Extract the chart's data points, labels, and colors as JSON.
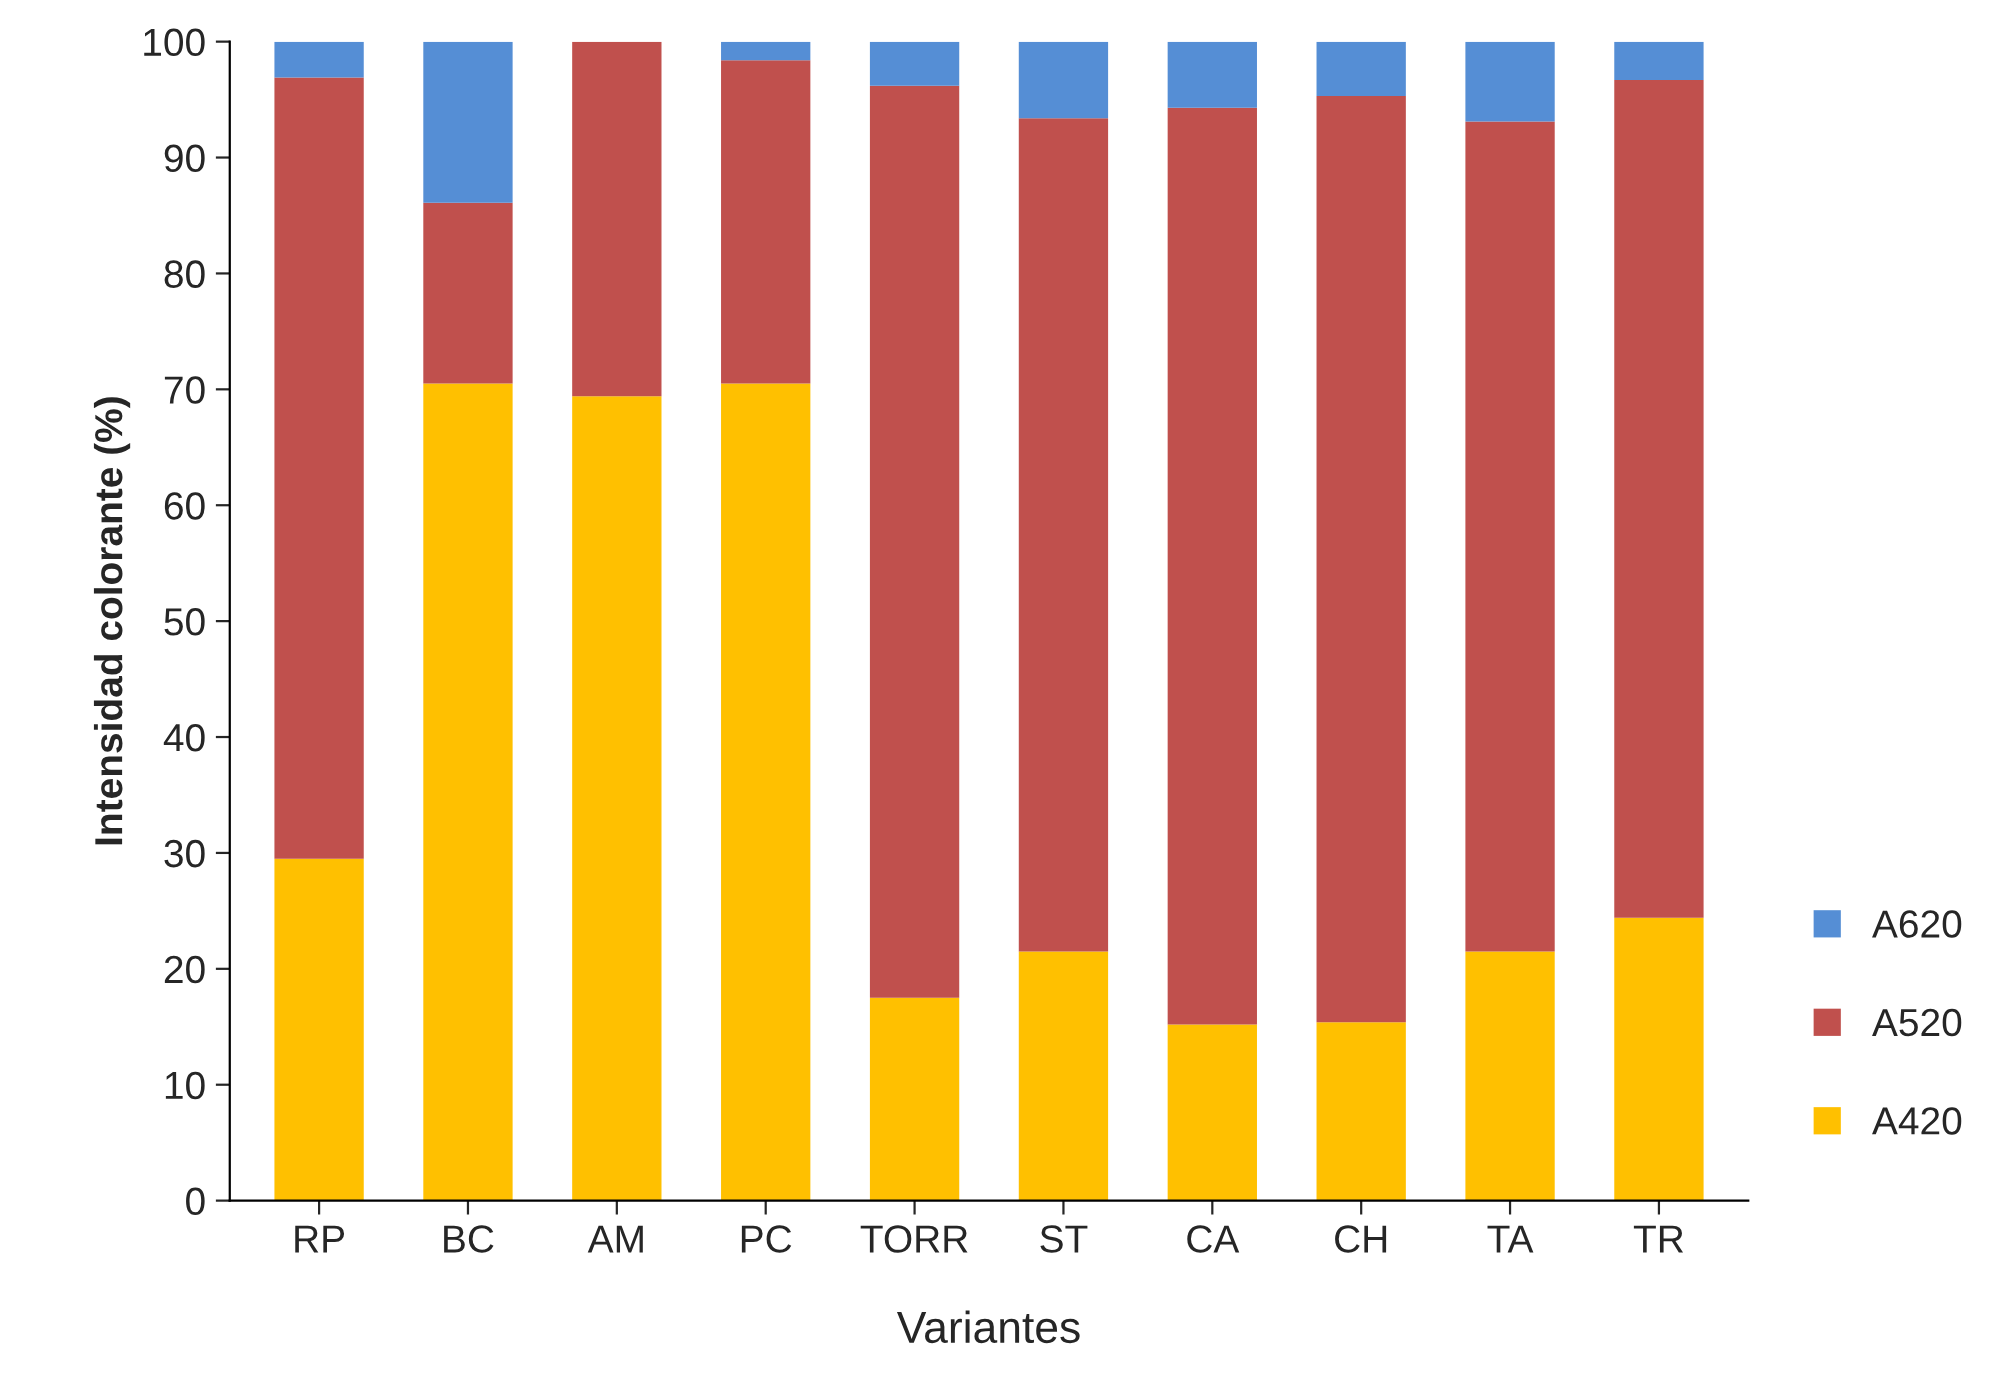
{
  "chart_data": {
    "type": "bar",
    "stacked": true,
    "xlabel": "Variantes",
    "ylabel": "Intensidad colorante (%)",
    "categories": [
      "RP",
      "BC",
      "AM",
      "PC",
      "TORR",
      "ST",
      "CA",
      "CH",
      "TA",
      "TR"
    ],
    "series": [
      {
        "name": "A420",
        "color": "#ffc000",
        "values": [
          29.5,
          70.5,
          69.4,
          70.5,
          17.5,
          21.5,
          15.2,
          15.4,
          21.5,
          24.4
        ]
      },
      {
        "name": "A520",
        "color": "#c0504d",
        "values": [
          67.4,
          15.6,
          30.6,
          27.9,
          78.7,
          71.9,
          79.1,
          79.9,
          71.6,
          72.3
        ]
      },
      {
        "name": "A620",
        "color": "#558ed5",
        "values": [
          3.1,
          13.9,
          null,
          1.6,
          3.8,
          6.6,
          5.7,
          4.7,
          6.9,
          3.3
        ]
      }
    ],
    "ylim": [
      0,
      100
    ],
    "yticks": [
      0,
      10,
      20,
      30,
      40,
      50,
      60,
      70,
      80,
      90,
      100
    ],
    "grid": false,
    "legend": "bottom right"
  }
}
